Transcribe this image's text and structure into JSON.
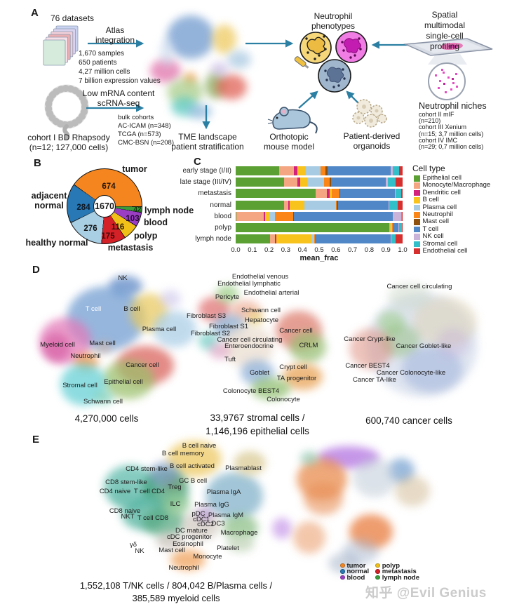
{
  "panelA": {
    "label": "A",
    "datasets_title": "76 datasets",
    "atlas_label": "Atlas\nintegration",
    "stats": [
      "1,670 samples",
      "650 patients",
      "4,27 million cells",
      "7 billion expression values"
    ],
    "low_mrna_label": "Low mRNA content\nscRNA-seq",
    "bulk_cohorts": [
      "bulk cohorts",
      "AC-ICAM (n=348)",
      "TCGA (n=573)",
      "CMC-BSN (n=208)"
    ],
    "cohort1_label": "cohort I BD Rhapsody\n(n=12; 127,000 cells)",
    "tme_label": "TME landscape\npatient stratification",
    "phenotypes_label": "Neutrophil\nphenotypes",
    "spatial_label": "Spatial multimodal\nsingle-cell profiling",
    "niches_title": "Neutrophil niches",
    "niches_cohorts": [
      "cohort II mIF",
      "(n=210)",
      "cohort III Xenium",
      "(n=15; 3,7 million cells)",
      "cohort IV IMC",
      "(n=29; 0,7 million cells)"
    ],
    "mouse_label": "Orthotopic\nmouse model",
    "organoids_label": "Patient-derived\norganoids",
    "arrow_color": "#2b7fa3"
  },
  "panelB": {
    "label": "B",
    "center_total": "1670",
    "chart_data": {
      "type": "donut",
      "total_samples": 1670,
      "slices": [
        {
          "label": "lymph node",
          "value": 42,
          "color": "#3a9c3a"
        },
        {
          "label": "blood",
          "value": 103,
          "color": "#9a3fc4"
        },
        {
          "label": "polyp",
          "value": 116,
          "color": "#f0c019"
        },
        {
          "label": "metastasis",
          "value": 175,
          "color": "#d42027"
        },
        {
          "label": "healthy normal",
          "value": 276,
          "color": "#a9cfe5"
        },
        {
          "label": "adjacent normal",
          "value": 284,
          "color": "#2778b5"
        },
        {
          "label": "tumor",
          "value": 674,
          "color": "#f5861f"
        }
      ]
    }
  },
  "panelC": {
    "label": "C",
    "legend_title": "Cell type",
    "chart_data": {
      "type": "stacked_bar_horizontal",
      "xlabel": "mean_frac",
      "xlim": [
        0.0,
        1.0
      ],
      "xticks": [
        "0.0",
        "0.1",
        "0.2",
        "0.3",
        "0.4",
        "0.5",
        "0.6",
        "0.7",
        "0.8",
        "0.9",
        "1.0"
      ],
      "categories": [
        "early stage (I/II)",
        "late stage (III/IV)",
        "metastasis",
        "normal",
        "blood",
        "polyp",
        "lymph node"
      ],
      "series": [
        {
          "name": "Epithelial cell",
          "color": "#5ba033",
          "values": [
            0.26,
            0.29,
            0.48,
            0.29,
            0.005,
            0.92,
            0.205
          ]
        },
        {
          "name": "Monocyte/Macrophage",
          "color": "#f4a582",
          "values": [
            0.09,
            0.08,
            0.065,
            0.025,
            0.165,
            0.005,
            0.03
          ]
        },
        {
          "name": "Dendritic cell",
          "color": "#d4217c",
          "values": [
            0.02,
            0.015,
            0.02,
            0.01,
            0.005,
            0.0,
            0.01
          ]
        },
        {
          "name": "B cell",
          "color": "#f7c31c",
          "values": [
            0.05,
            0.045,
            0.005,
            0.085,
            0.03,
            0.005,
            0.21
          ]
        },
        {
          "name": "Plasma cell",
          "color": "#a6cbe3",
          "values": [
            0.09,
            0.1,
            0.005,
            0.19,
            0.03,
            0.005,
            0.015
          ]
        },
        {
          "name": "Neutrophil",
          "color": "#fb8617",
          "values": [
            0.03,
            0.035,
            0.045,
            0.005,
            0.11,
            0.005,
            0.005
          ]
        },
        {
          "name": "Mast cell",
          "color": "#8e5110",
          "values": [
            0.01,
            0.005,
            0.005,
            0.01,
            0.005,
            0.0,
            0.0
          ]
        },
        {
          "name": "T cell",
          "color": "#4f87c7",
          "values": [
            0.38,
            0.33,
            0.33,
            0.3,
            0.59,
            0.035,
            0.455
          ]
        },
        {
          "name": "NK cell",
          "color": "#c9b3d9",
          "values": [
            0.01,
            0.01,
            0.005,
            0.005,
            0.05,
            0.005,
            0.005
          ]
        },
        {
          "name": "Stromal cell",
          "color": "#32bfc9",
          "values": [
            0.04,
            0.05,
            0.03,
            0.05,
            0.005,
            0.015,
            0.025
          ]
        },
        {
          "name": "Endothelial cell",
          "color": "#d62f2e",
          "values": [
            0.02,
            0.04,
            0.01,
            0.03,
            0.005,
            0.005,
            0.04
          ]
        }
      ]
    }
  },
  "panelD": {
    "label": "D",
    "umap_all_cells": {
      "labels": [
        "NK",
        "T cell",
        "B cell",
        "Plasma cell",
        "Myeloid cell",
        "Mast cell",
        "Neutrophil",
        "Cancer cell",
        "Stromal cell",
        "Epithelial cell",
        "Schwann cell"
      ],
      "caption": "4,270,000 cells"
    },
    "umap_stromal_epithelial": {
      "labels": [
        "Endothelial venous",
        "Endothelial lymphatic",
        "Endothelial arterial",
        "Pericyte",
        "Schwann cell",
        "Fibroblast S3",
        "Hepatocyte",
        "Fibroblast S1",
        "Fibroblast S2",
        "Cancer cell",
        "Cancer cell circulating",
        "Enteroendocrine",
        "CRLM",
        "Tuft",
        "Crypt cell",
        "Goblet",
        "TA progenitor",
        "Colonocyte BEST4",
        "Colonocyte"
      ],
      "caption": "33,9767 stromal cells /\n1,146,196 epithelial cells"
    },
    "umap_cancer": {
      "labels": [
        "Cancer cell circulating",
        "Cancer Crypt-like",
        "Cancer Goblet-like",
        "Cancer BEST4",
        "Cancer Colonocyte-like",
        "Cancer TA-like"
      ],
      "caption": "600,740 cancer cells"
    }
  },
  "panelE": {
    "label": "E",
    "umap_immune": {
      "labels": [
        "B cell naive",
        "B cell memory",
        "B cell activated",
        "Plasmablast",
        "CD4 stem-like",
        "GC B cell",
        "CD8 stem-like",
        "Treg",
        "CD4 naive",
        "T cell CD4",
        "Plasma IgA",
        "ILC",
        "Plasma IgG",
        "CD8 naive",
        "pDC",
        "Plasma IgM",
        "NKT",
        "T cell CD8",
        "cDC1",
        "cDC2",
        "DC3",
        "DC mature",
        "Macrophage",
        "cDC progenitor",
        "γδ",
        "Eosinophil",
        "Platelet",
        "NK",
        "Mast cell",
        "Monocyte",
        "Neutrophil"
      ],
      "caption": "1,552,108 T/NK cells / 804,042 B/Plasma cells /\n385,589 myeloid cells"
    },
    "tissue_legend": [
      {
        "label": "tumor",
        "color": "#f5861f"
      },
      {
        "label": "normal",
        "color": "#2778b5"
      },
      {
        "label": "blood",
        "color": "#9a3fc4"
      },
      {
        "label": "polyp",
        "color": "#f0c019"
      },
      {
        "label": "metastasis",
        "color": "#d42027"
      },
      {
        "label": "lymph node",
        "color": "#3a9c3a"
      }
    ]
  },
  "watermark": "知乎 @Evil Genius"
}
